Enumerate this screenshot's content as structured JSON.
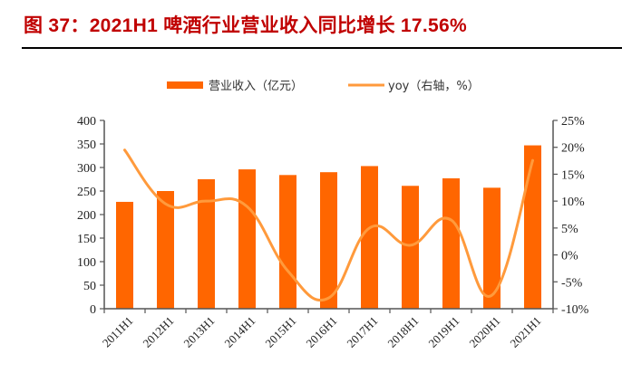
{
  "title": "图 37：2021H1 啤酒行业营业收入同比增长 17.56%",
  "legend": {
    "bar_label": "营业收入（亿元）",
    "line_label": "yoy（右轴，%）"
  },
  "colors": {
    "title": "#c00000",
    "bar": "#ff6600",
    "line": "#ff9a3c",
    "axis": "#555555"
  },
  "chart_data": {
    "type": "bar+line",
    "title": "图 37：2021H1 啤酒行业营业收入同比增长 17.56%",
    "categories": [
      "2011H1",
      "2012H1",
      "2013H1",
      "2014H1",
      "2015H1",
      "2016H1",
      "2017H1",
      "2018H1",
      "2019H1",
      "2020H1",
      "2021H1"
    ],
    "series": [
      {
        "name": "营业收入（亿元）",
        "type": "bar",
        "axis": "left",
        "values": [
          227,
          250,
          275,
          296,
          284,
          290,
          303,
          261,
          277,
          257,
          347
        ]
      },
      {
        "name": "yoy（右轴，%）",
        "type": "line",
        "axis": "right",
        "values": [
          19.5,
          9.5,
          10.0,
          9.0,
          -3.0,
          -8.0,
          5.0,
          1.8,
          6.5,
          -7.5,
          17.56
        ]
      }
    ],
    "left_axis": {
      "ylim": [
        0,
        400
      ],
      "ticks": [
        "0",
        "50",
        "100",
        "150",
        "200",
        "250",
        "300",
        "350",
        "400"
      ]
    },
    "right_axis": {
      "ylim": [
        -10,
        25
      ],
      "ticks": [
        "-10%",
        "-5%",
        "0%",
        "5%",
        "10%",
        "15%",
        "20%",
        "25%"
      ]
    },
    "xlabel": "",
    "ylabel": "",
    "grid": false,
    "legend_position": "top"
  }
}
